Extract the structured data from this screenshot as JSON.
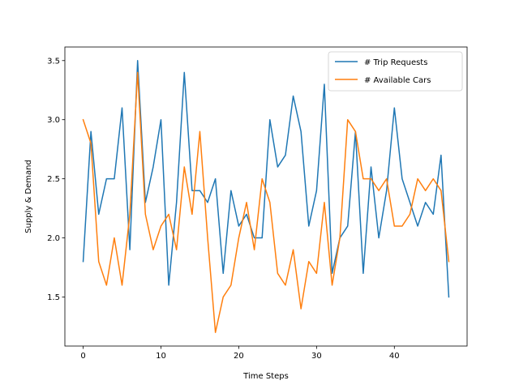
{
  "chart_data": {
    "type": "line",
    "title": "",
    "xlabel": "Time Steps",
    "ylabel": "Supply & Demand",
    "xlim": [
      -2.35,
      49.35
    ],
    "ylim": [
      1.085,
      3.615
    ],
    "xticks": [
      0,
      10,
      20,
      30,
      40
    ],
    "yticks": [
      1.5,
      2.0,
      2.5,
      3.0,
      3.5
    ],
    "xtick_labels": [
      "0",
      "10",
      "20",
      "30",
      "40"
    ],
    "ytick_labels": [
      "1.5",
      "2.0",
      "2.5",
      "3.0",
      "3.5"
    ],
    "grid": false,
    "legend_position": "top-right",
    "x": [
      0,
      1,
      2,
      3,
      4,
      5,
      6,
      7,
      8,
      9,
      10,
      11,
      12,
      13,
      14,
      15,
      16,
      17,
      18,
      19,
      20,
      21,
      22,
      23,
      24,
      25,
      26,
      27,
      28,
      29,
      30,
      31,
      32,
      33,
      34,
      35,
      36,
      37,
      38,
      39,
      40,
      41,
      42,
      43,
      44,
      45,
      46,
      47
    ],
    "series": [
      {
        "name": "# Trip Requests",
        "color": "#1f77b4",
        "values": [
          1.8,
          2.9,
          2.2,
          2.5,
          2.5,
          3.1,
          1.9,
          3.5,
          2.3,
          2.6,
          3.0,
          1.6,
          2.3,
          3.4,
          2.4,
          2.4,
          2.3,
          2.5,
          1.7,
          2.4,
          2.1,
          2.2,
          2.0,
          2.0,
          3.0,
          2.6,
          2.7,
          3.2,
          2.9,
          2.1,
          2.4,
          3.3,
          1.7,
          2.0,
          2.1,
          2.9,
          1.7,
          2.6,
          2.0,
          2.4,
          3.1,
          2.5,
          2.3,
          2.1,
          2.3,
          2.2,
          2.7,
          1.5
        ]
      },
      {
        "name": "# Available Cars",
        "color": "#ff7f0e",
        "values": [
          3.0,
          2.8,
          1.8,
          1.6,
          2.0,
          1.6,
          2.2,
          3.4,
          2.2,
          1.9,
          2.1,
          2.2,
          1.9,
          2.6,
          2.2,
          2.9,
          2.0,
          1.2,
          1.5,
          1.6,
          2.0,
          2.3,
          1.9,
          2.5,
          2.3,
          1.7,
          1.6,
          1.9,
          1.4,
          1.8,
          1.7,
          2.3,
          1.6,
          2.0,
          3.0,
          2.9,
          2.5,
          2.5,
          2.4,
          2.5,
          2.1,
          2.1,
          2.2,
          2.5,
          2.4,
          2.5,
          2.4,
          1.8
        ]
      }
    ]
  }
}
